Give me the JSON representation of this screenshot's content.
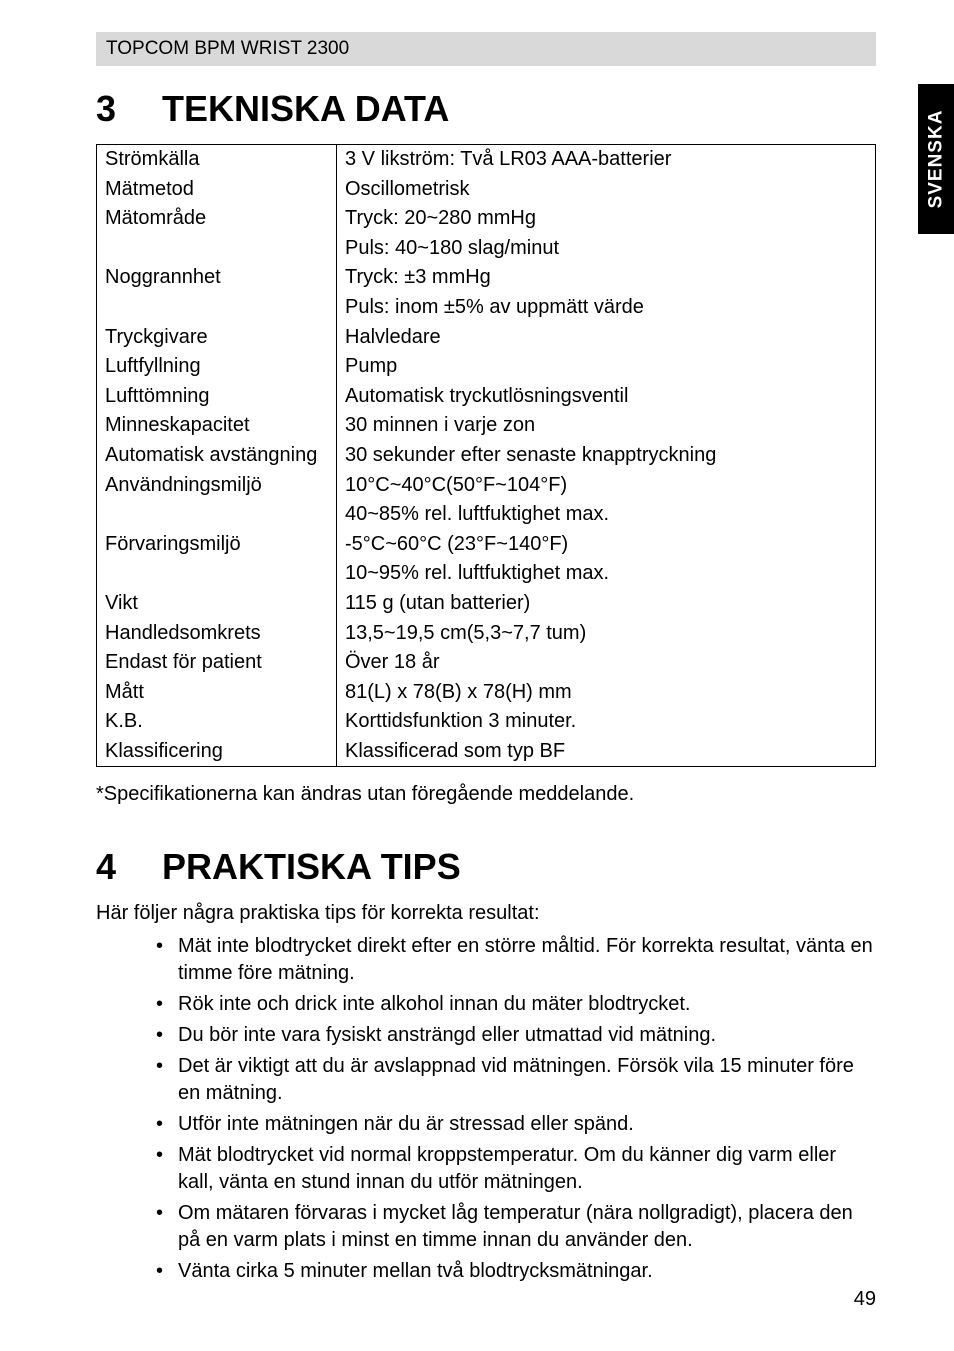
{
  "header": {
    "product": "TOPCOM BPM WRIST 2300"
  },
  "side_tab": {
    "label": "SVENSKA"
  },
  "section3": {
    "number": "3",
    "title": "TEKNISKA DATA",
    "rows": [
      {
        "label": "Strömkälla",
        "value": "3 V likström: Två LR03 AAA-batterier"
      },
      {
        "label": "Mätmetod",
        "value": "Oscillometrisk"
      },
      {
        "label": "Mätområde",
        "value": "Tryck: 20~280 mmHg"
      },
      {
        "label": "",
        "value": "Puls: 40~180 slag/minut"
      },
      {
        "label": "Noggrannhet",
        "value": "Tryck: ±3 mmHg"
      },
      {
        "label": "",
        "value": "Puls: inom ±5% av uppmätt värde"
      },
      {
        "label": "Tryckgivare",
        "value": "Halvledare"
      },
      {
        "label": "Luftfyllning",
        "value": "Pump"
      },
      {
        "label": "Lufttömning",
        "value": "Automatisk tryckutlösningsventil"
      },
      {
        "label": "Minneskapacitet",
        "value": "30 minnen i varje zon"
      },
      {
        "label": "Automatisk avstängning",
        "value": "30 sekunder efter senaste knapptryckning"
      },
      {
        "label": "Användningsmiljö",
        "value": "10°C~40°C(50°F~104°F)"
      },
      {
        "label": "",
        "value": "40~85% rel. luftfuktighet max."
      },
      {
        "label": "Förvaringsmiljö",
        "value": "-5°C~60°C (23°F~140°F)"
      },
      {
        "label": "",
        "value": "10~95% rel. luftfuktighet max."
      },
      {
        "label": "Vikt",
        "value": "115 g (utan batterier)"
      },
      {
        "label": "Handledsomkrets",
        "value": "13,5~19,5 cm(5,3~7,7 tum)"
      },
      {
        "label": "Endast för patient",
        "value": "Över 18 år"
      },
      {
        "label": "Mått",
        "value": "81(L) x 78(B) x 78(H) mm"
      },
      {
        "label": "K.B.",
        "value": "Korttidsfunktion 3 minuter."
      },
      {
        "label": "Klassificering",
        "value": "Klassificerad som typ BF"
      }
    ],
    "footnote": "*Specifikationerna kan ändras utan föregående meddelande."
  },
  "section4": {
    "number": "4",
    "title": "PRAKTISKA TIPS",
    "intro": "Här följer några praktiska tips för korrekta resultat:",
    "tips": [
      "Mät inte blodtrycket direkt efter en större måltid. För korrekta resultat, vänta en timme före mätning.",
      "Rök inte och drick inte alkohol innan du mäter blodtrycket.",
      "Du bör inte vara fysiskt ansträngd eller utmattad vid mätning.",
      "Det är viktigt att du är avslappnad vid mätningen. Försök vila 15 minuter före en mätning.",
      "Utför inte mätningen när du är stressad eller spänd.",
      "Mät blodtrycket vid normal kroppstemperatur. Om du känner dig varm eller kall, vänta en stund innan du utför mätningen.",
      "Om mätaren förvaras i mycket låg temperatur (nära nollgradigt), placera den på en varm plats i minst en timme innan du använder den.",
      "Vänta cirka 5 minuter mellan två blodtrycksmätningar."
    ]
  },
  "page_number": "49"
}
